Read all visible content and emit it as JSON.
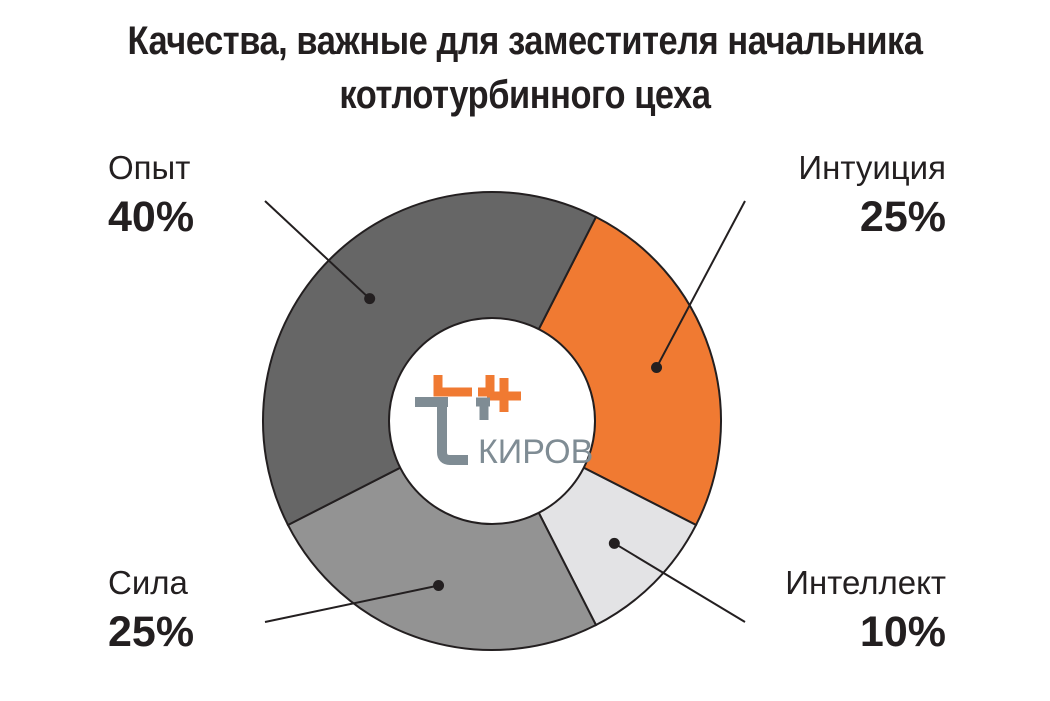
{
  "title": {
    "line1": "Качества, важные для заместителя начальника",
    "line2": "котлотурбинного цеха"
  },
  "logo": {
    "text": "КИРОВ",
    "icon": "t-plus-logo"
  },
  "colors": {
    "orange": "#f07a32",
    "dark_gray": "#666666",
    "mid_gray": "#939393",
    "light_gray": "#e3e3e5",
    "logo_gray": "#7f8c94"
  },
  "chart_data": {
    "type": "pie",
    "variant": "donut",
    "start": "top, clockwise from Интуиция",
    "slices": [
      {
        "label": "Интуиция",
        "value": 25,
        "display": "25%",
        "color": "#f07a32"
      },
      {
        "label": "Интеллект",
        "value": 10,
        "display": "10%",
        "color": "#e3e3e5"
      },
      {
        "label": "Сила",
        "value": 25,
        "display": "25%",
        "color": "#939393"
      },
      {
        "label": "Опыт",
        "value": 40,
        "display": "40%",
        "color": "#666666"
      }
    ]
  }
}
